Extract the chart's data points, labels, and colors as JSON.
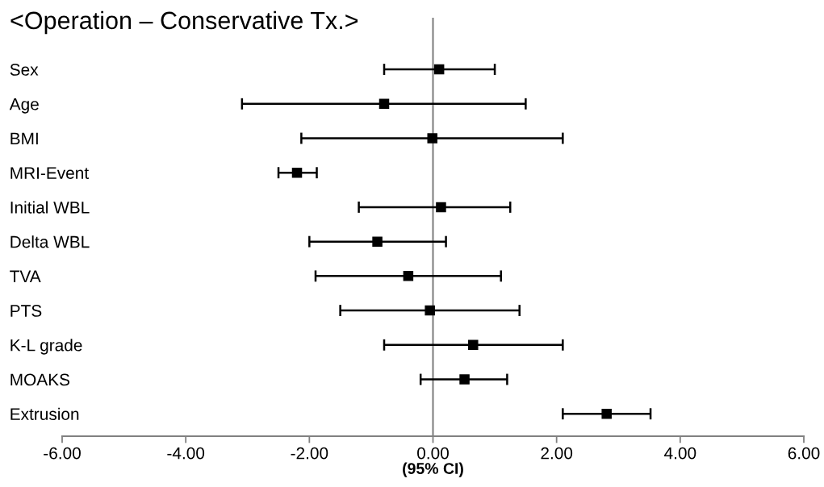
{
  "chart_data": {
    "type": "scatter",
    "orientation": "horizontal",
    "title": "<Operation – Conservative Tx.>",
    "xlabel": "(95% CI)",
    "categories": [
      "Sex",
      "Age",
      "BMI",
      "MRI-Event",
      "Initial WBL",
      "Delta WBL",
      "TVA",
      "PTS",
      "K-L grade",
      "MOAKS",
      "Extrusion"
    ],
    "values": [
      0.1,
      -0.79,
      -0.01,
      -2.2,
      0.13,
      -0.9,
      -0.4,
      -0.05,
      0.65,
      0.51,
      2.81
    ],
    "errors": [
      [
        -0.79,
        1.0
      ],
      [
        -3.09,
        1.5
      ],
      [
        -2.13,
        2.1
      ],
      [
        -2.5,
        -1.88
      ],
      [
        -1.2,
        1.25
      ],
      [
        -2.0,
        0.21
      ],
      [
        -1.9,
        1.1
      ],
      [
        -1.5,
        1.4
      ],
      [
        -0.79,
        2.1
      ],
      [
        -0.2,
        1.2
      ],
      [
        2.1,
        3.52
      ]
    ],
    "color": "#000000",
    "marker": "square",
    "xlim": [
      -6,
      6
    ],
    "xticks": [
      {
        "value": -6,
        "label": "-6.00"
      },
      {
        "value": -4,
        "label": "-4.00"
      },
      {
        "value": -2,
        "label": "-2.00"
      },
      {
        "value": 0,
        "label": "0.00"
      },
      {
        "value": 2,
        "label": "2.00"
      },
      {
        "value": 4,
        "label": "4.00"
      },
      {
        "value": 6,
        "label": "6.00"
      }
    ],
    "ref_lines": [
      {
        "axis": "x",
        "value": 0,
        "color": "#808080"
      }
    ],
    "grid": false,
    "legend": false
  }
}
